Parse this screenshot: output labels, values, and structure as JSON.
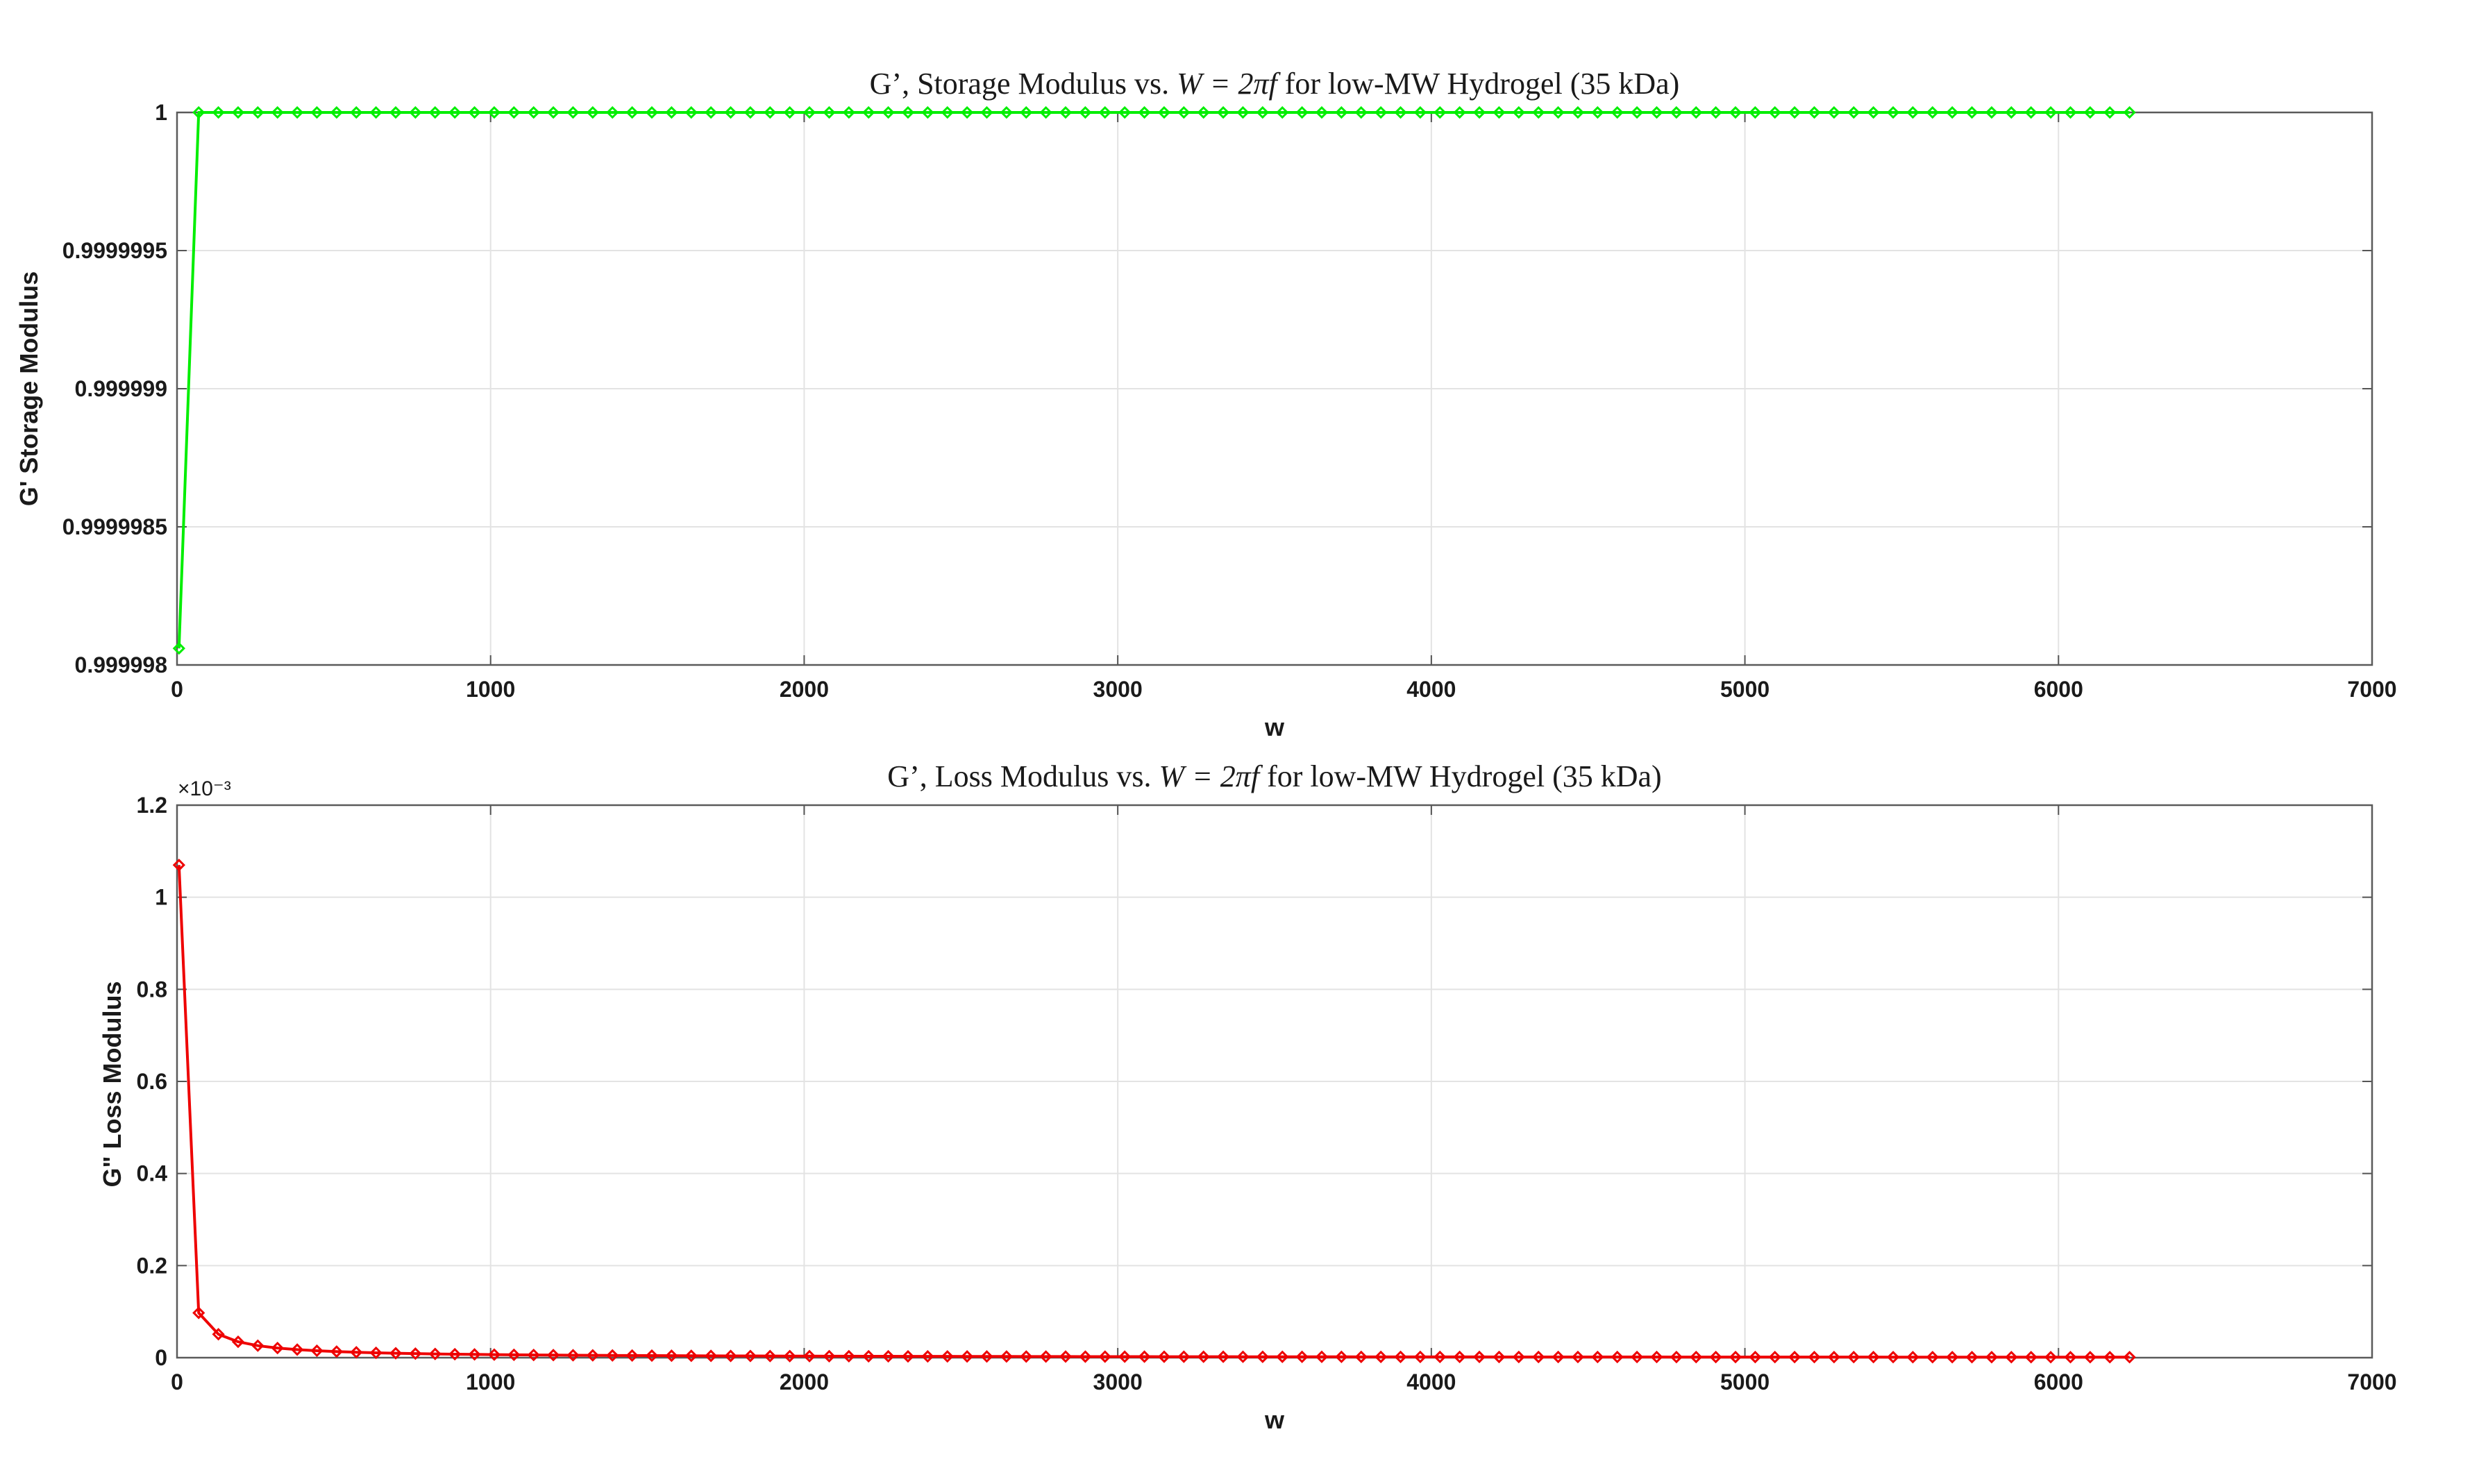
{
  "chart_data": [
    {
      "type": "line",
      "title_prefix": "G’, Storage Modulus vs. ",
      "title_math": "W = 2πf",
      "title_suffix": " for low-MW Hydrogel (35 kDa)",
      "xlabel": "w",
      "ylabel": "G' Storage Modulus",
      "xlim": [
        0,
        7000
      ],
      "ylim": [
        0.999998,
        1
      ],
      "x_ticks": [
        0,
        1000,
        2000,
        3000,
        4000,
        5000,
        6000,
        7000
      ],
      "x_tick_labels": [
        "0",
        "1000",
        "2000",
        "3000",
        "4000",
        "5000",
        "6000",
        "7000"
      ],
      "y_ticks": [
        0.999998,
        0.9999985,
        0.999999,
        0.9999995,
        1
      ],
      "y_tick_labels": [
        "0.999998",
        "0.9999985",
        "0.999999",
        "0.9999995",
        "1"
      ],
      "y_exponent": "",
      "grid": true,
      "series": [
        {
          "color": "#00ee00",
          "marker": "diamond",
          "x_start": 6.2832,
          "x_step": 62.832,
          "count": 100,
          "first_value": 0.99999806,
          "plateau_value": 1.0
        }
      ]
    },
    {
      "type": "line",
      "title_prefix": "G’, Loss Modulus vs. ",
      "title_math": "W = 2πf",
      "title_suffix": " for low-MW Hydrogel (35 kDa)",
      "xlabel": "w",
      "ylabel": "G\" Loss Modulus",
      "xlim": [
        0,
        7000
      ],
      "ylim": [
        0,
        0.0012
      ],
      "x_ticks": [
        0,
        1000,
        2000,
        3000,
        4000,
        5000,
        6000,
        7000
      ],
      "x_tick_labels": [
        "0",
        "1000",
        "2000",
        "3000",
        "4000",
        "5000",
        "6000",
        "7000"
      ],
      "y_ticks": [
        0,
        0.0002,
        0.0004,
        0.0006,
        0.0008,
        0.001,
        0.0012
      ],
      "y_tick_labels": [
        "0",
        "0.2",
        "0.4",
        "0.6",
        "0.8",
        "1",
        "1.2"
      ],
      "y_exponent": "×10⁻³",
      "grid": true,
      "series": [
        {
          "color": "#ee0000",
          "marker": "diamond",
          "x_start": 6.2832,
          "x_step": 62.832,
          "count": 100,
          "first_value": 0.00107,
          "decay": "reciprocal"
        }
      ]
    }
  ]
}
